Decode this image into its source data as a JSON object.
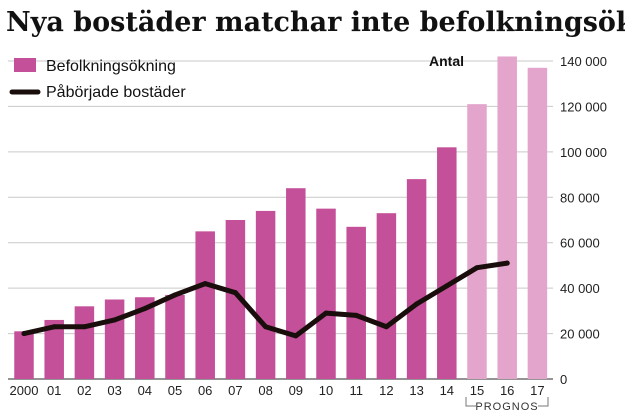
{
  "chart_data": {
    "type": "bar",
    "title": "Nya bostäder matchar inte befolkningsökningen",
    "unit_label": "Antal",
    "categories": [
      "2000",
      "01",
      "02",
      "03",
      "04",
      "05",
      "06",
      "07",
      "08",
      "09",
      "10",
      "11",
      "12",
      "13",
      "14",
      "15",
      "16",
      "17"
    ],
    "forecast_label": "PROGNOS",
    "forecast_categories": [
      "15",
      "16",
      "17"
    ],
    "ylim": [
      0,
      140000
    ],
    "yticks": [
      0,
      20000,
      40000,
      60000,
      80000,
      100000,
      120000,
      140000
    ],
    "ytick_labels": [
      "0",
      "20 000",
      "40 000",
      "60 000",
      "80 000",
      "100 000",
      "120 000",
      "140 000"
    ],
    "grid": true,
    "y_axis_position": "right",
    "legend_position": "top-left",
    "series": [
      {
        "name": "Befolkningsökning",
        "type": "bar",
        "color": "#c4509a",
        "forecast_color": "#e3a5cb",
        "values": [
          21000,
          26000,
          32000,
          35000,
          36000,
          37000,
          65000,
          70000,
          74000,
          84000,
          75000,
          67000,
          73000,
          88000,
          102000,
          121000,
          142000,
          137000
        ]
      },
      {
        "name": "Påbörjade bostäder",
        "type": "line",
        "color": "#1a0e0c",
        "values": [
          20000,
          23000,
          23000,
          26000,
          31000,
          37000,
          42000,
          38000,
          23000,
          19000,
          29000,
          28000,
          23000,
          33000,
          41000,
          49000,
          51000,
          null
        ]
      }
    ]
  }
}
